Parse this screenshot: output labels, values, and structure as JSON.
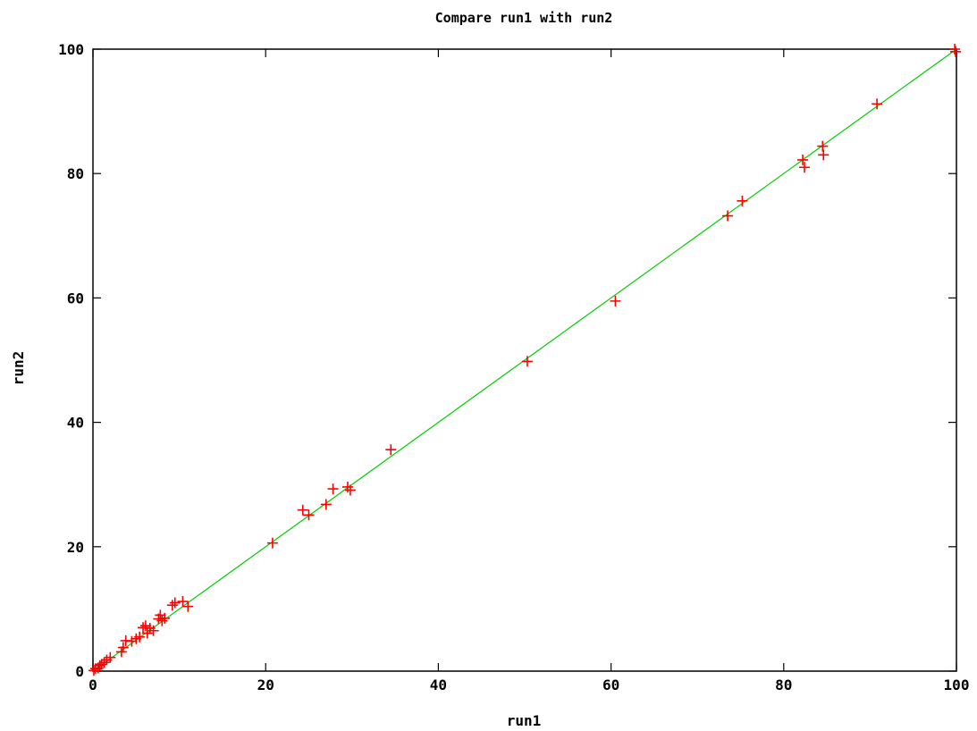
{
  "chart_data": {
    "type": "scatter",
    "title": "Compare run1 with run2",
    "xlabel": "run1",
    "ylabel": "run2",
    "xlim": [
      0,
      100
    ],
    "ylim": [
      0,
      100
    ],
    "xticks": [
      0,
      20,
      40,
      60,
      80,
      100
    ],
    "yticks": [
      0,
      20,
      40,
      60,
      80,
      100
    ],
    "grid": false,
    "legend": "none",
    "series": [
      {
        "marker": "plus",
        "color": "#ff0000",
        "points": [
          [
            0.1,
            0.1
          ],
          [
            0.3,
            0.4
          ],
          [
            0.6,
            0.5
          ],
          [
            0.8,
            0.9
          ],
          [
            1.0,
            1.1
          ],
          [
            1.3,
            1.4
          ],
          [
            1.6,
            1.8
          ],
          [
            2.0,
            2.2
          ],
          [
            3.3,
            3.1
          ],
          [
            3.5,
            3.8
          ],
          [
            3.8,
            4.9
          ],
          [
            4.5,
            4.8
          ],
          [
            5.0,
            5.2
          ],
          [
            5.4,
            5.5
          ],
          [
            5.8,
            7.0
          ],
          [
            6.1,
            7.3
          ],
          [
            6.3,
            6.1
          ],
          [
            6.6,
            6.9
          ],
          [
            7.0,
            6.5
          ],
          [
            7.6,
            8.4
          ],
          [
            7.8,
            9.0
          ],
          [
            8.0,
            8.1
          ],
          [
            8.3,
            8.5
          ],
          [
            9.2,
            10.6
          ],
          [
            9.5,
            11.0
          ],
          [
            10.4,
            11.2
          ],
          [
            11.0,
            10.4
          ],
          [
            20.8,
            20.6
          ],
          [
            24.3,
            25.9
          ],
          [
            25.0,
            25.1
          ],
          [
            27.0,
            26.8
          ],
          [
            27.8,
            29.3
          ],
          [
            29.5,
            29.6
          ],
          [
            29.8,
            29.1
          ],
          [
            34.5,
            35.6
          ],
          [
            50.3,
            49.8
          ],
          [
            60.5,
            59.5
          ],
          [
            73.5,
            73.2
          ],
          [
            75.2,
            75.6
          ],
          [
            82.2,
            82.2
          ],
          [
            82.4,
            81.0
          ],
          [
            84.5,
            84.4
          ],
          [
            84.6,
            83.0
          ],
          [
            90.8,
            91.2
          ],
          [
            99.8,
            100.0
          ],
          [
            99.9,
            99.6
          ]
        ]
      },
      {
        "type": "line",
        "color": "#00cc00",
        "points": [
          [
            0,
            0
          ],
          [
            100,
            100
          ]
        ]
      }
    ]
  }
}
